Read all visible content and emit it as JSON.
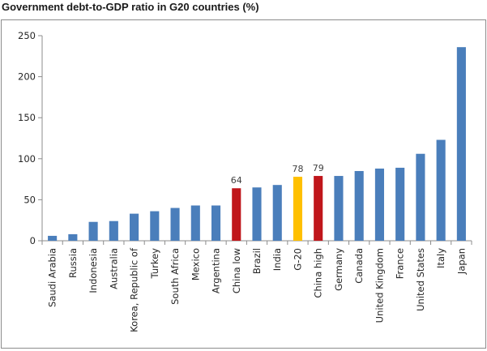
{
  "chart_data": {
    "type": "bar",
    "title": "Government debt-to-GDP ratio in G20 countries (%)",
    "xlabel": "",
    "ylabel": "",
    "ylim": [
      0,
      250
    ],
    "yticks": [
      0,
      50,
      100,
      150,
      200,
      250
    ],
    "grid": false,
    "legend": "none",
    "categories": [
      "Saudi Arabia",
      "Russia",
      "Indonesia",
      "Australia",
      "Korea, Republic of",
      "Turkey",
      "South Africa",
      "Mexico",
      "Argentina",
      "China low",
      "Brazil",
      "India",
      "G-20",
      "China high",
      "Germany",
      "Canada",
      "United Kingdom",
      "France",
      "United States",
      "Italy",
      "Japan"
    ],
    "values": [
      6,
      8,
      23,
      24,
      33,
      36,
      40,
      43,
      43,
      64,
      65,
      68,
      78,
      79,
      79,
      85,
      88,
      89,
      106,
      123,
      236
    ],
    "colors": [
      "#4a7ebb",
      "#4a7ebb",
      "#4a7ebb",
      "#4a7ebb",
      "#4a7ebb",
      "#4a7ebb",
      "#4a7ebb",
      "#4a7ebb",
      "#4a7ebb",
      "#c0161b",
      "#4a7ebb",
      "#4a7ebb",
      "#ffc000",
      "#c0161b",
      "#4a7ebb",
      "#4a7ebb",
      "#4a7ebb",
      "#4a7ebb",
      "#4a7ebb",
      "#4a7ebb",
      "#4a7ebb"
    ],
    "data_labels": [
      "",
      "",
      "",
      "",
      "",
      "",
      "",
      "",
      "",
      "64",
      "",
      "",
      "78",
      "79",
      "",
      "",
      "",
      "",
      "",
      "",
      ""
    ]
  }
}
